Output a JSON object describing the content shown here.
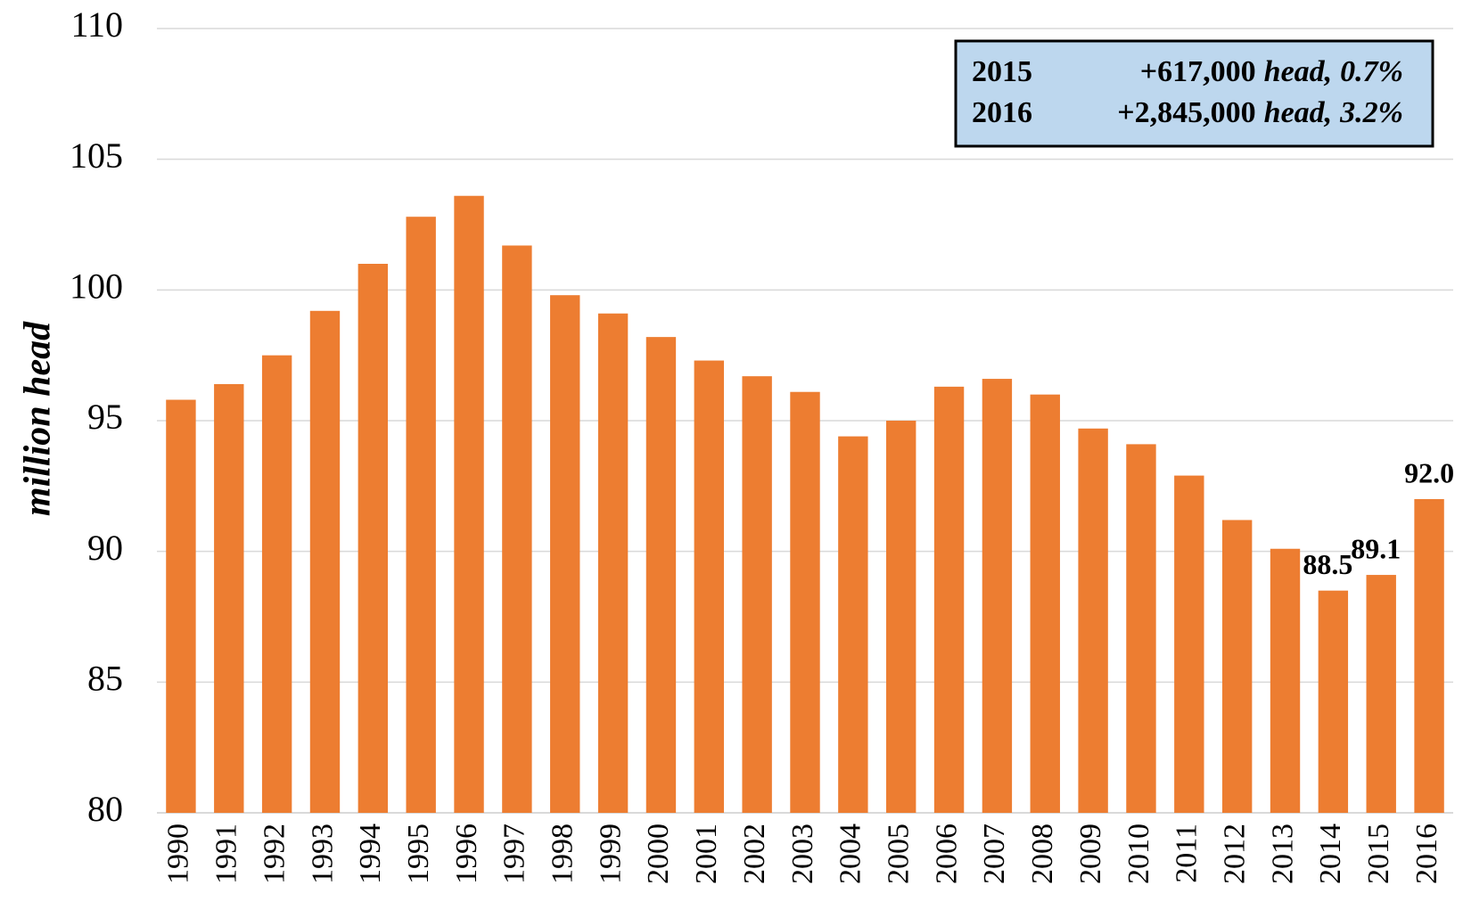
{
  "chart_data": {
    "type": "bar",
    "y_label": "million head",
    "categories": [
      "1990",
      "1991",
      "1992",
      "1993",
      "1994",
      "1995",
      "1996",
      "1997",
      "1998",
      "1999",
      "2000",
      "2001",
      "2002",
      "2003",
      "2004",
      "2005",
      "2006",
      "2007",
      "2008",
      "2009",
      "2010",
      "2011",
      "2012",
      "2013",
      "2014",
      "2015",
      "2016"
    ],
    "values": [
      95.8,
      96.4,
      97.5,
      99.2,
      101.0,
      102.8,
      103.6,
      101.7,
      99.8,
      99.1,
      98.2,
      97.3,
      96.7,
      96.1,
      94.4,
      95.0,
      96.3,
      96.6,
      96.0,
      94.7,
      94.1,
      92.9,
      91.2,
      90.1,
      88.5,
      89.1,
      92.0
    ],
    "value_labels": [
      null,
      null,
      null,
      null,
      null,
      null,
      null,
      null,
      null,
      null,
      null,
      null,
      null,
      null,
      null,
      null,
      null,
      null,
      null,
      null,
      null,
      null,
      null,
      null,
      "88.5",
      "89.1",
      "92.0"
    ],
    "color": "#ed7d31",
    "ylim": [
      80,
      110
    ],
    "yticks": [
      80,
      85,
      90,
      95,
      100,
      105,
      110
    ],
    "grid": true,
    "annotation": [
      {
        "year": "2015",
        "change": "+617,000",
        "unit": "head,",
        "pct": "0.7%"
      },
      {
        "year": "2016",
        "change": "+2,845,000",
        "unit": "head,",
        "pct": "3.2%"
      }
    ]
  }
}
